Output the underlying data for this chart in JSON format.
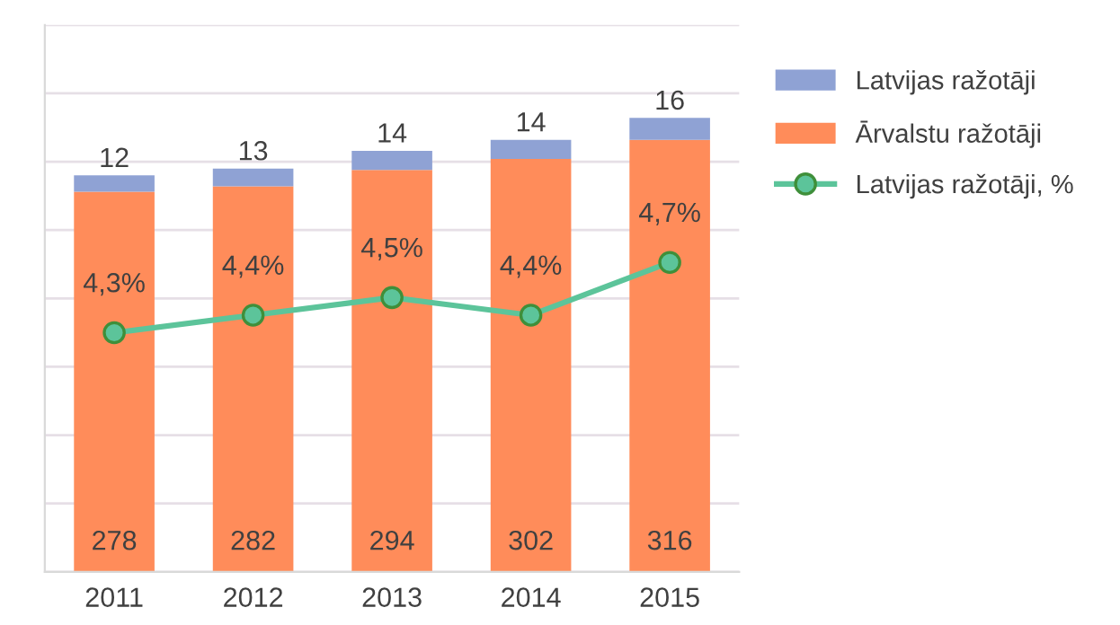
{
  "chart_data": {
    "type": "bar",
    "stacked": true,
    "categories": [
      "2011",
      "2012",
      "2013",
      "2014",
      "2015"
    ],
    "series": [
      {
        "name": "Ārvalstu ražotāji",
        "color": "#ff8c5a",
        "values": [
          278,
          282,
          294,
          302,
          316
        ]
      },
      {
        "name": "Latvijas ražotāji",
        "color": "#8fa2d4",
        "values": [
          12,
          13,
          14,
          14,
          16
        ]
      },
      {
        "name": "Latvijas ražotāji, %",
        "type": "line",
        "axis": "y2",
        "color": "#5cc49a",
        "marker": "circle",
        "values": [
          4.3,
          4.4,
          4.5,
          4.4,
          4.7
        ],
        "value_labels": [
          "4,3%",
          "4,4%",
          "4,5%",
          "4,4%",
          "4,7%"
        ]
      }
    ],
    "data_labels": true,
    "ylim": [
      0,
      400
    ],
    "yticks": [
      {
        "value": 0,
        "label": null
      },
      {
        "value": 50,
        "label": null
      },
      {
        "value": 100,
        "label": null
      },
      {
        "value": 150,
        "label": null
      },
      {
        "value": 200,
        "label": null
      },
      {
        "value": 250,
        "label": null
      },
      {
        "value": 300,
        "label": null
      },
      {
        "value": 350,
        "label": null
      },
      {
        "value": 400,
        "label": null
      }
    ],
    "y2lim": [
      2.94,
      6.05
    ],
    "grid": "y",
    "legend": "right",
    "tick_labels": "x"
  }
}
